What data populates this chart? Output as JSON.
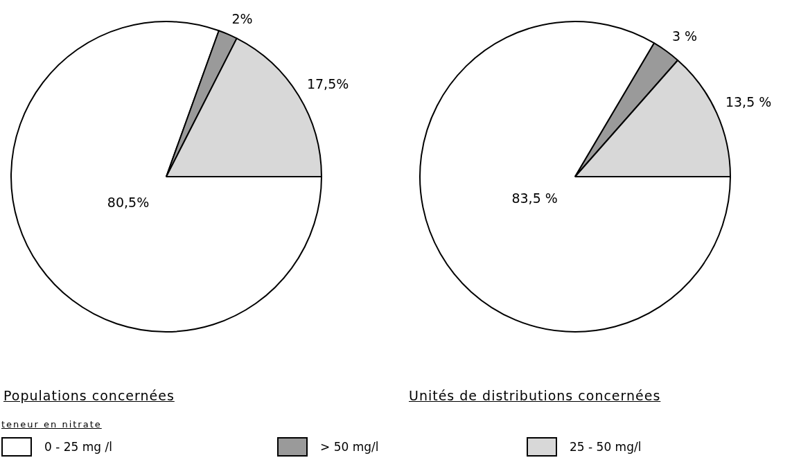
{
  "chart_data": [
    {
      "type": "pie",
      "title": "Populations concernées",
      "categories": [
        "0 - 25 mg /l",
        "> 50 mg/l",
        "25 - 50 mg/l"
      ],
      "values": [
        80.5,
        2,
        17.5
      ],
      "colors": [
        "#ffffff",
        "#9a9a9a",
        "#d8d8d8"
      ],
      "value_labels": [
        "80,5%",
        "2%",
        "17,5%"
      ],
      "legend": "bottom",
      "legend_title": "teneur en nitrate"
    },
    {
      "type": "pie",
      "title": "Unités de distributions concernées",
      "categories": [
        null,
        null,
        null
      ],
      "values": [
        83.5,
        3,
        13.5
      ],
      "colors": [
        "#ffffff",
        "#9a9a9a",
        "#d8d8d8"
      ],
      "value_labels": [
        "83,5 %",
        "3 %",
        "13,5 %"
      ]
    }
  ]
}
